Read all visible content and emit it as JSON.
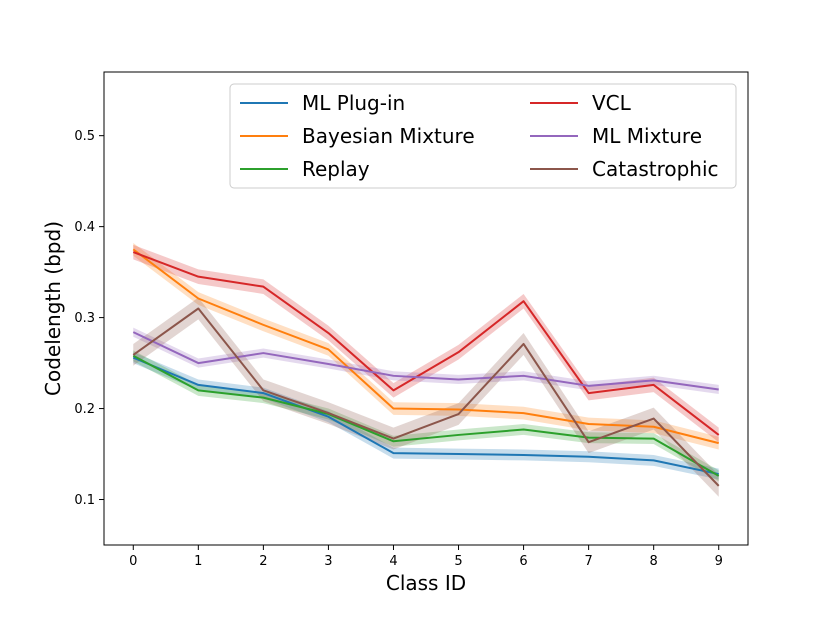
{
  "chart_data": {
    "type": "line",
    "title": "",
    "xlabel": "Class ID",
    "ylabel": "Codelength (bpd)",
    "xlim": [
      -0.45,
      9.45
    ],
    "ylim": [
      0.05,
      0.57
    ],
    "xticks": [
      0,
      1,
      2,
      3,
      4,
      5,
      6,
      7,
      8,
      9
    ],
    "xtick_labels": [
      "0",
      "1",
      "2",
      "3",
      "4",
      "5",
      "6",
      "7",
      "8",
      "9"
    ],
    "yticks": [
      0.1,
      0.2,
      0.3,
      0.4,
      0.5
    ],
    "ytick_labels": [
      "0.1",
      "0.2",
      "0.3",
      "0.4",
      "0.5"
    ],
    "grid": false,
    "legend_position": "top-right",
    "x": [
      0,
      1,
      2,
      3,
      4,
      5,
      6,
      7,
      8,
      9
    ],
    "series": [
      {
        "name": "ML Plug-in",
        "color": "#1f77b4",
        "values": [
          0.256,
          0.226,
          0.217,
          0.191,
          0.151,
          0.15,
          0.149,
          0.147,
          0.143,
          0.128
        ],
        "band": 0.006
      },
      {
        "name": "Bayesian Mixture",
        "color": "#ff7f0e",
        "values": [
          0.375,
          0.321,
          0.292,
          0.265,
          0.2,
          0.199,
          0.195,
          0.183,
          0.18,
          0.162
        ],
        "band": 0.007
      },
      {
        "name": "Replay",
        "color": "#2ca02c",
        "values": [
          0.258,
          0.22,
          0.212,
          0.194,
          0.164,
          0.171,
          0.177,
          0.168,
          0.167,
          0.126
        ],
        "band": 0.006
      },
      {
        "name": "VCL",
        "color": "#d62728",
        "values": [
          0.372,
          0.345,
          0.334,
          0.283,
          0.22,
          0.262,
          0.318,
          0.217,
          0.226,
          0.171
        ],
        "band": 0.008
      },
      {
        "name": "ML Mixture",
        "color": "#9467bd",
        "values": [
          0.284,
          0.25,
          0.261,
          0.249,
          0.236,
          0.232,
          0.236,
          0.225,
          0.231,
          0.221
        ],
        "band": 0.005
      },
      {
        "name": "Catastrophic",
        "color": "#8c564b",
        "values": [
          0.259,
          0.31,
          0.22,
          0.195,
          0.167,
          0.194,
          0.271,
          0.163,
          0.189,
          0.115
        ],
        "band": 0.012
      }
    ]
  }
}
